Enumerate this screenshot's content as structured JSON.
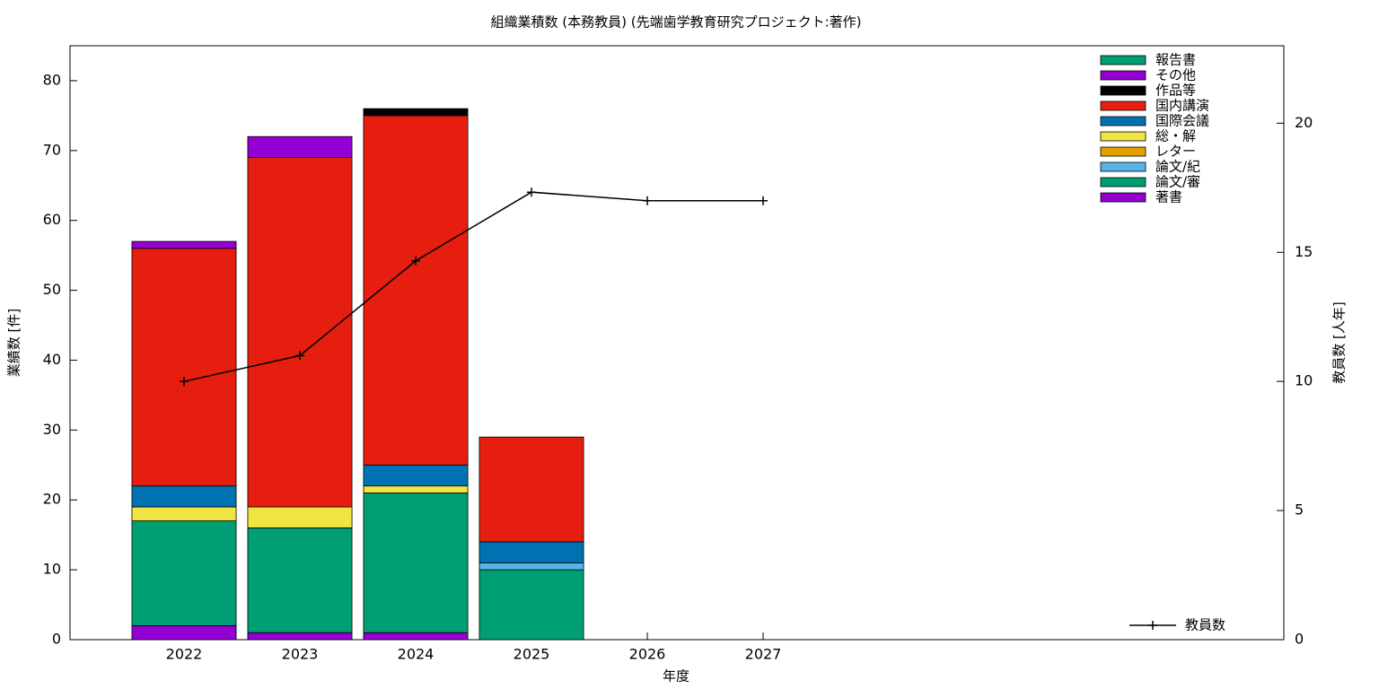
{
  "chart_data": {
    "type": "bar",
    "stacked": true,
    "title": "組織業積数 (本務教員) (先端歯学教育研究プロジェクト:著作)",
    "x_label": "年度",
    "y_label": "業績数 [件]",
    "y2_label": "教員数 [人年]",
    "categories": [
      "2022",
      "2023",
      "2024",
      "2025",
      "2026",
      "2027"
    ],
    "ylim": [
      0,
      85
    ],
    "yticks": [
      0,
      10,
      20,
      30,
      40,
      50,
      60,
      70,
      80
    ],
    "y2lim": [
      0,
      23
    ],
    "y2ticks": [
      0,
      5,
      10,
      15,
      20
    ],
    "grid": false,
    "legend": "top right",
    "series": [
      {
        "name": "著書",
        "color": "#9400d3",
        "values": [
          2,
          1,
          1,
          0,
          null,
          null
        ]
      },
      {
        "name": "論文/審",
        "color": "#009e73",
        "values": [
          15,
          15,
          20,
          10,
          null,
          null
        ]
      },
      {
        "name": "論文/紀",
        "color": "#56b4e9",
        "values": [
          0,
          0,
          0,
          1,
          null,
          null
        ]
      },
      {
        "name": "レター",
        "color": "#e69f00",
        "values": [
          0,
          0,
          0,
          0,
          null,
          null
        ]
      },
      {
        "name": "総・解",
        "color": "#f0e442",
        "values": [
          2,
          3,
          1,
          0,
          null,
          null
        ]
      },
      {
        "name": "国際会議",
        "color": "#0072b2",
        "values": [
          3,
          0,
          3,
          3,
          null,
          null
        ]
      },
      {
        "name": "国内講演",
        "color": "#e51e10",
        "values": [
          34,
          50,
          50,
          15,
          null,
          null
        ]
      },
      {
        "name": "作品等",
        "color": "#000000",
        "values": [
          0,
          0,
          1,
          0,
          null,
          null
        ]
      },
      {
        "name": "その他",
        "color": "#9400d3",
        "values": [
          1,
          3,
          0,
          0,
          null,
          null
        ]
      },
      {
        "name": "報告書",
        "color": "#009e73",
        "values": [
          0,
          0,
          0,
          0,
          null,
          null
        ]
      },
      {
        "name": "教員数",
        "color": "#000000",
        "type": "line",
        "axis": "y2",
        "values": [
          10,
          11,
          14.67,
          17.33,
          17,
          17
        ]
      }
    ]
  }
}
